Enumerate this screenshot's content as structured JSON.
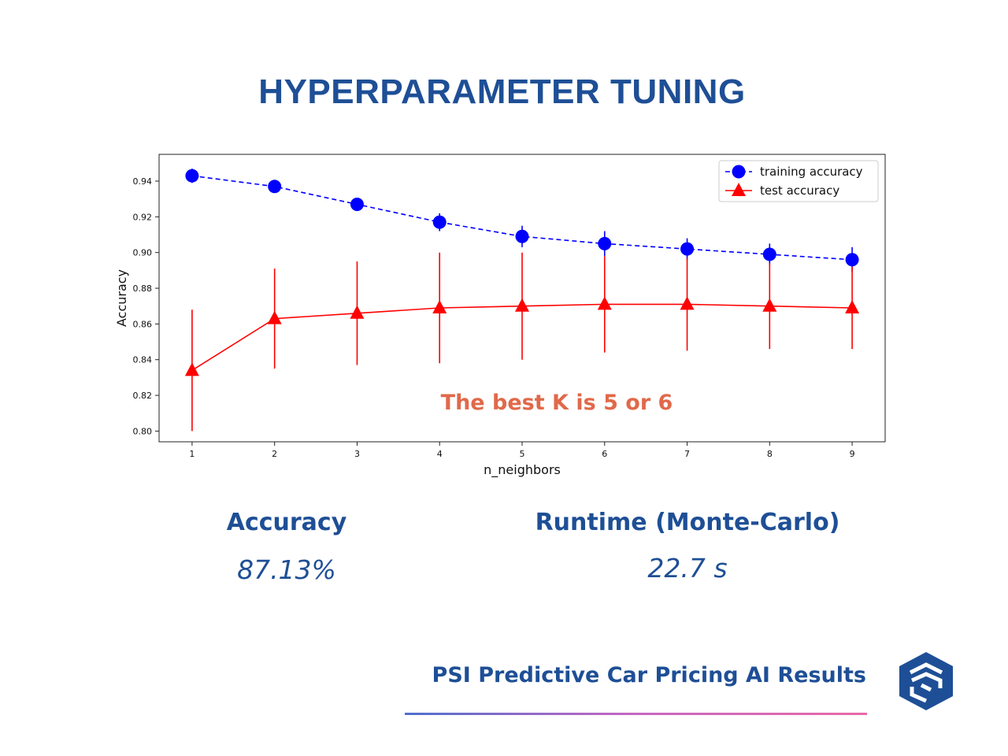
{
  "page": {
    "title": "HYPERPARAMETER TUNING",
    "metrics": [
      {
        "label": "Accuracy",
        "value": "87.13%"
      },
      {
        "label": "Runtime (Monte-Carlo)",
        "value": "22.7 s"
      }
    ],
    "footer": "PSI Predictive Car Pricing AI Results",
    "colors": {
      "brand": "#1e4f96",
      "annotation": "#e0694a",
      "train": "#0000ff",
      "test": "#ff0000"
    }
  },
  "chart_data": {
    "type": "line",
    "xlabel": "n_neighbors",
    "ylabel": "Accuracy",
    "x": [
      1,
      2,
      3,
      4,
      5,
      6,
      7,
      8,
      9
    ],
    "x_ticks": [
      "1",
      "2",
      "3",
      "4",
      "5",
      "6",
      "7",
      "8",
      "9"
    ],
    "y_ticks": [
      "0.80",
      "0.82",
      "0.84",
      "0.86",
      "0.88",
      "0.90",
      "0.92",
      "0.94"
    ],
    "ylim": [
      0.794,
      0.955
    ],
    "xlim": [
      0.6,
      9.4
    ],
    "legend_position": "top-right",
    "annotation": "The best K is 5 or 6",
    "series": [
      {
        "name": "training accuracy",
        "values": [
          0.943,
          0.937,
          0.927,
          0.917,
          0.909,
          0.905,
          0.902,
          0.899,
          0.896
        ],
        "error": [
          0.004,
          0.002,
          0.003,
          0.005,
          0.006,
          0.007,
          0.006,
          0.006,
          0.007
        ],
        "color": "#0000ff",
        "marker": "circle",
        "line": "dashed"
      },
      {
        "name": "test accuracy",
        "values": [
          0.834,
          0.863,
          0.866,
          0.869,
          0.87,
          0.871,
          0.871,
          0.87,
          0.869
        ],
        "error": [
          0.034,
          0.028,
          0.029,
          0.031,
          0.03,
          0.027,
          0.026,
          0.024,
          0.023
        ],
        "color": "#ff0000",
        "marker": "triangle",
        "line": "solid"
      }
    ]
  }
}
